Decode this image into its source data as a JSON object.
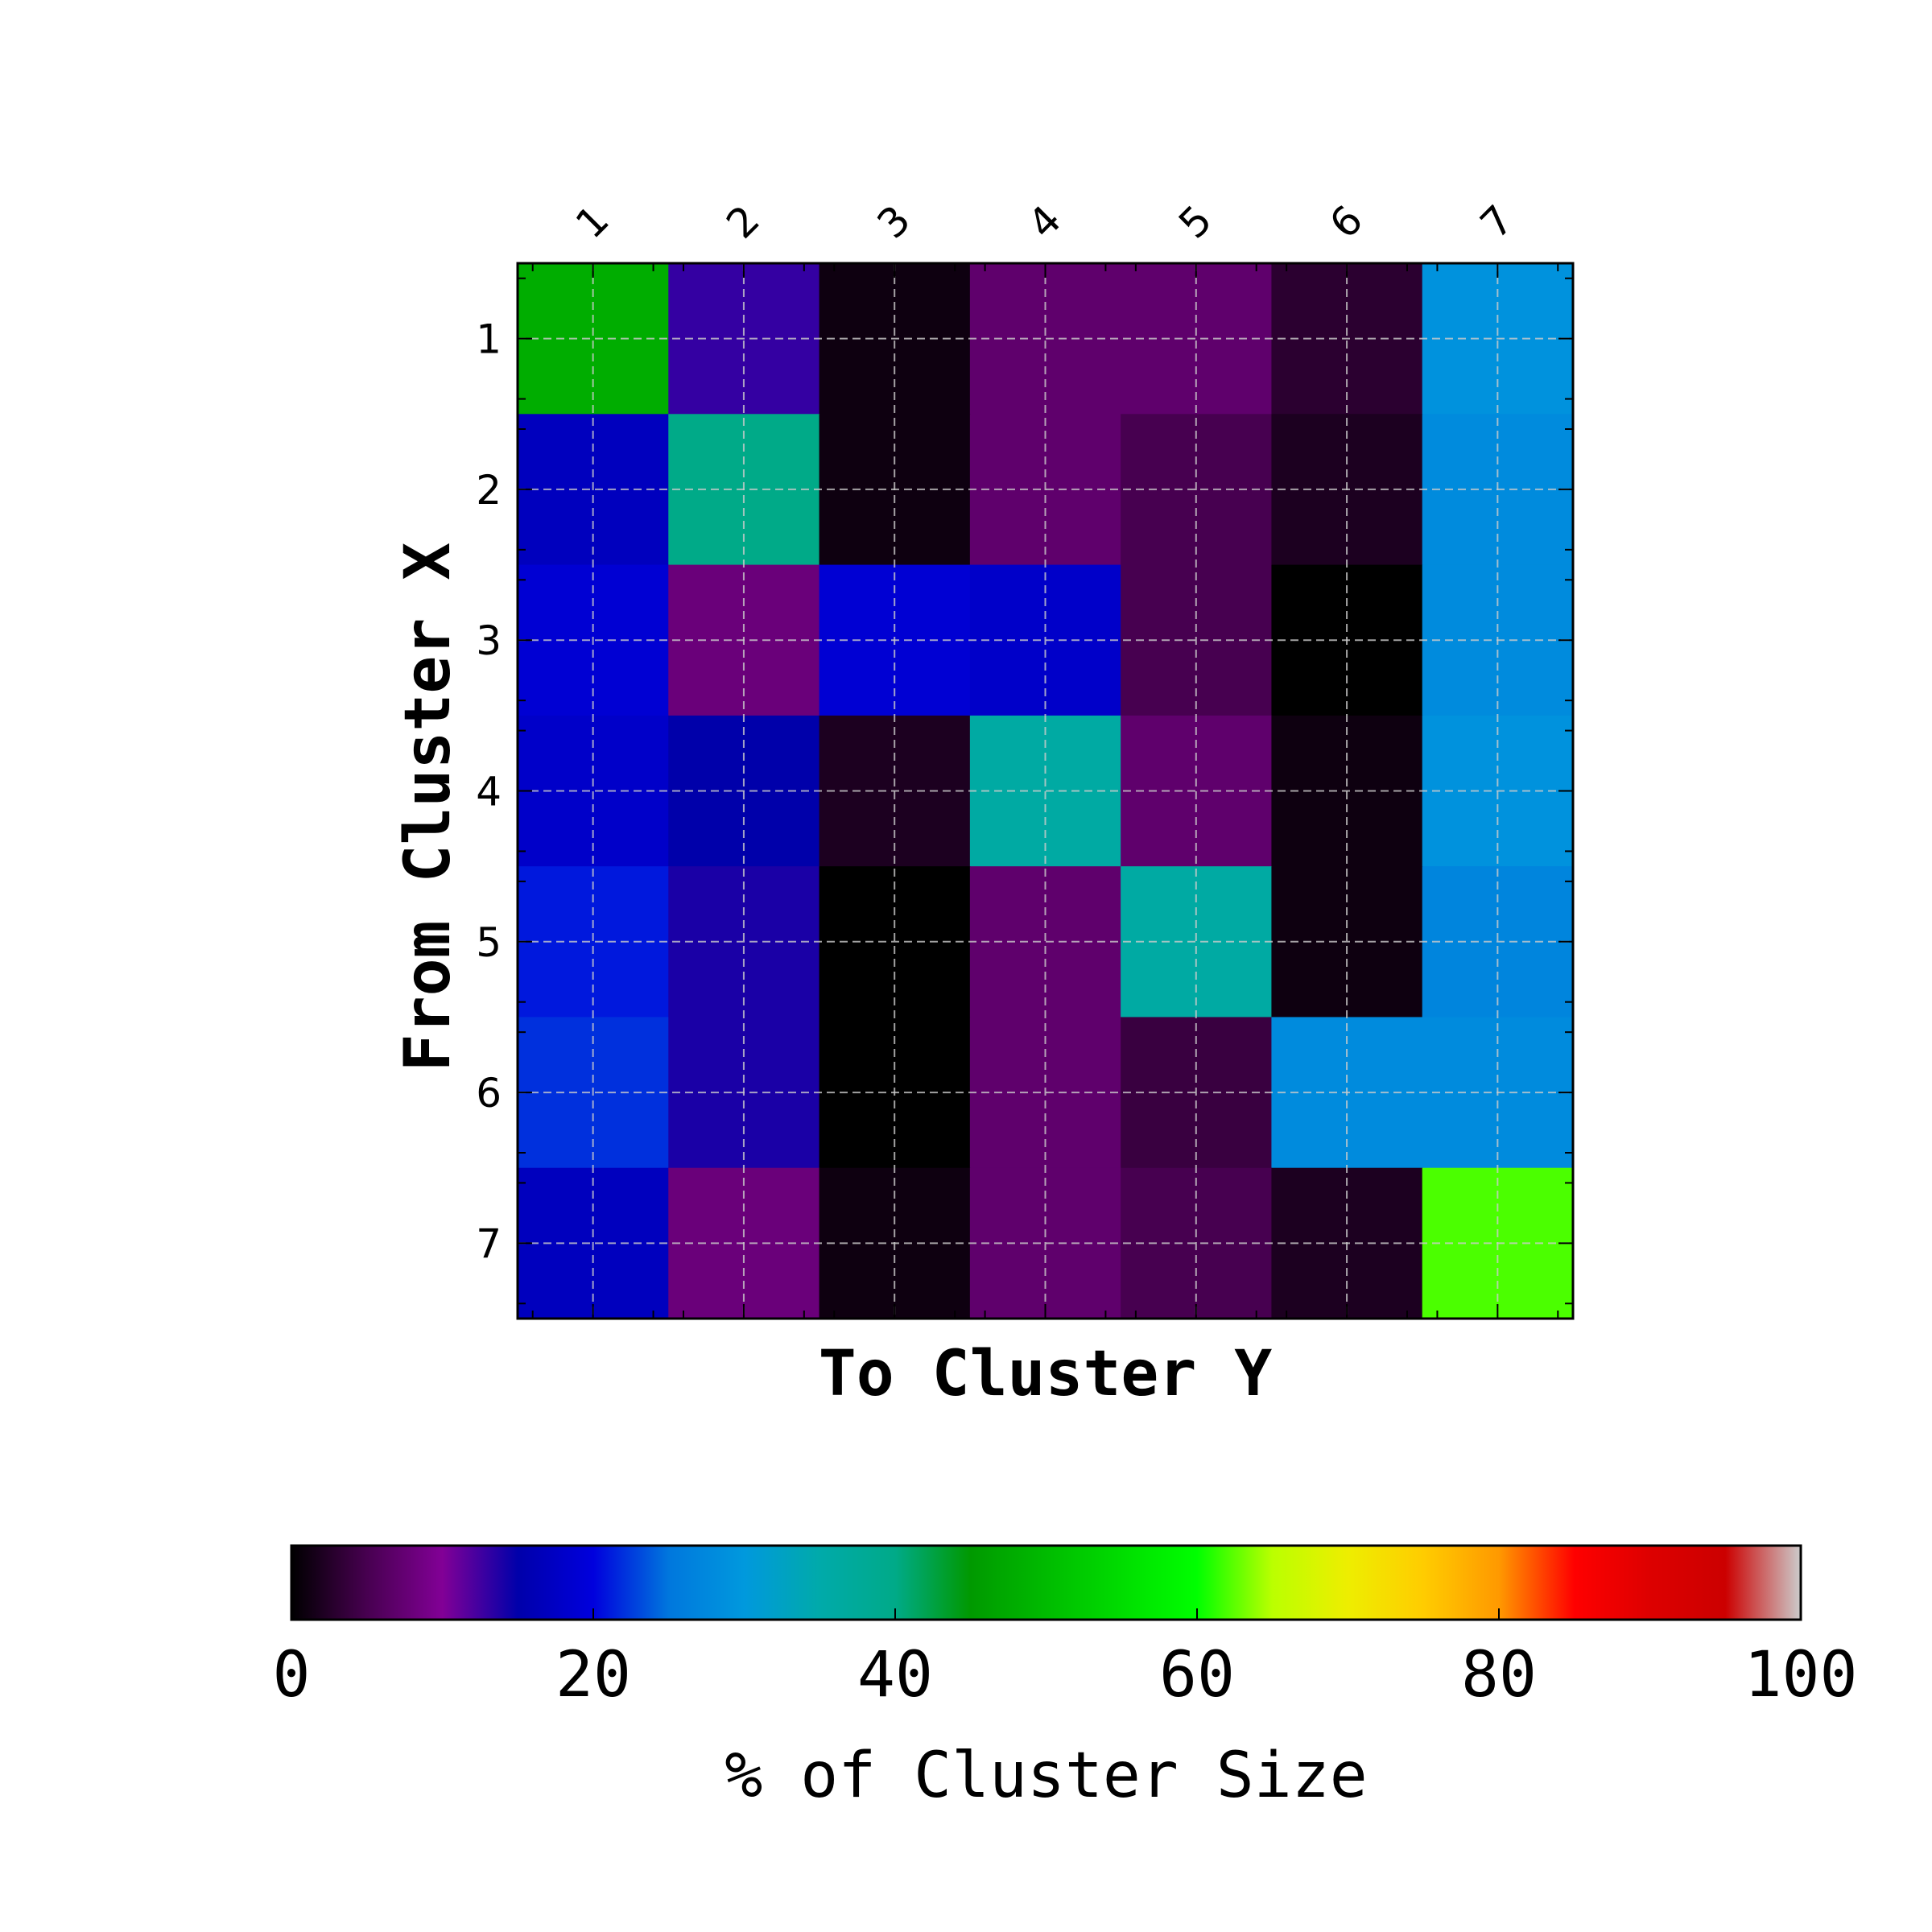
{
  "chart_data": {
    "type": "heatmap",
    "title": "",
    "xlabel": "To Cluster Y",
    "ylabel": "From Cluster X",
    "x_categories": [
      "1",
      "2",
      "3",
      "4",
      "5",
      "6",
      "7"
    ],
    "y_categories": [
      "1",
      "2",
      "3",
      "4",
      "5",
      "6",
      "7"
    ],
    "x_tick_position": "top",
    "grid": true,
    "colorscale": "nipy_spectral",
    "values": [
      [
        48,
        13,
        1,
        7,
        7,
        3,
        29
      ],
      [
        17,
        40,
        1,
        7,
        5,
        2,
        28
      ],
      [
        19,
        8,
        19,
        18,
        5,
        0,
        28
      ],
      [
        18,
        15,
        2,
        36,
        7,
        1,
        29
      ],
      [
        21,
        14,
        0,
        7,
        36,
        1,
        27
      ],
      [
        22,
        14,
        0,
        7,
        4,
        28,
        28
      ],
      [
        17,
        8,
        1,
        7,
        5,
        2,
        62
      ]
    ],
    "colorbar": {
      "label": "% of Cluster Size",
      "range": [
        0,
        100
      ],
      "ticks": [
        "0",
        "20",
        "40",
        "60",
        "80",
        "100"
      ]
    }
  }
}
